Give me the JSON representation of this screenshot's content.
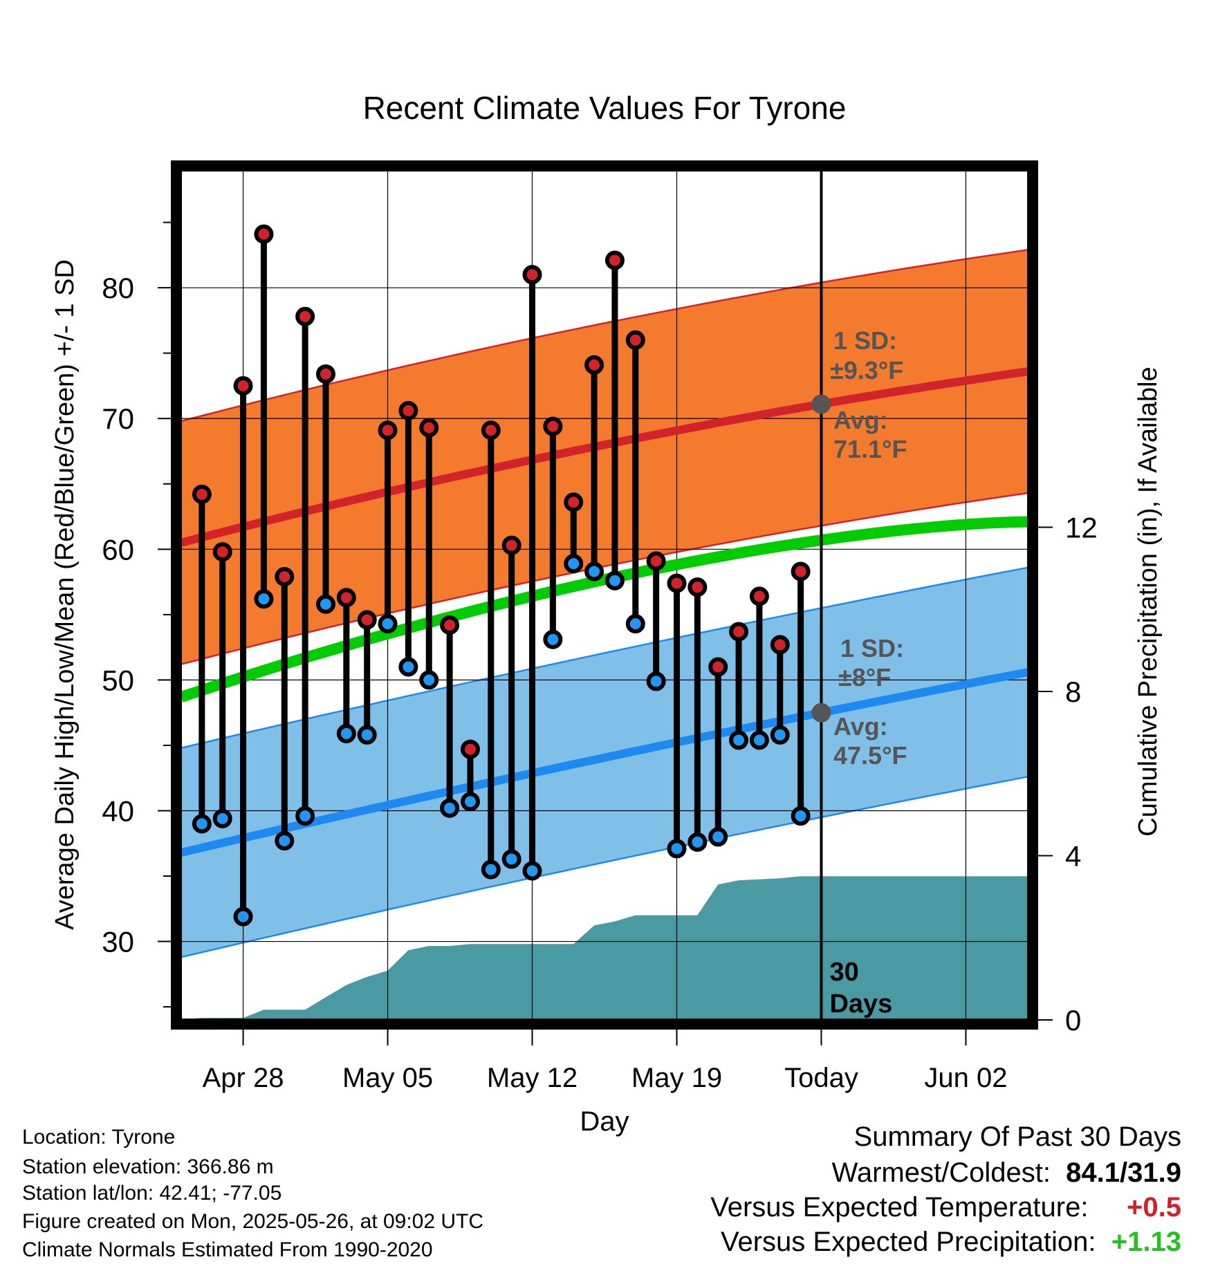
{
  "chart_data": {
    "type": "line",
    "title": "Recent Climate Values For Tyrone",
    "xlabel": "Day",
    "ylabel": "Average Daily High/Low/Mean (Red/Blue/Green) +/- 1 SD",
    "y2label": "Cumulative Precipitation (in), If Available",
    "ylim": [
      24,
      89
    ],
    "y2lim": [
      0,
      20.7
    ],
    "x_axis": {
      "start_date": "2025-04-25",
      "end_date": "2025-06-05",
      "tick_labels": [
        "Apr 28",
        "May 05",
        "May 12",
        "May 19",
        "Today",
        "Jun 02"
      ],
      "tick_dates": [
        "2025-04-28",
        "2025-05-05",
        "2025-05-12",
        "2025-05-19",
        "2025-05-26",
        "2025-06-02"
      ]
    },
    "y_ticks": [
      30,
      40,
      50,
      60,
      70,
      80
    ],
    "y2_ticks": [
      0,
      4,
      8,
      12
    ],
    "grid": true,
    "today_marker": {
      "date": "2025-05-26",
      "label": "30\nDays"
    },
    "normals": {
      "high_avg": {
        "start": 60.5,
        "today": 71.1,
        "end": 73.6
      },
      "high_sd": 9.3,
      "low_avg": {
        "start": 36.8,
        "today": 47.5,
        "end": 50.6
      },
      "low_sd": 8.0,
      "mean_avg": {
        "start": 48.7,
        "end": 62.1
      }
    },
    "daily": {
      "dates": [
        "2025-04-26",
        "2025-04-27",
        "2025-04-28",
        "2025-04-29",
        "2025-04-30",
        "2025-05-01",
        "2025-05-02",
        "2025-05-03",
        "2025-05-04",
        "2025-05-05",
        "2025-05-06",
        "2025-05-07",
        "2025-05-08",
        "2025-05-09",
        "2025-05-10",
        "2025-05-11",
        "2025-05-12",
        "2025-05-13",
        "2025-05-14",
        "2025-05-15",
        "2025-05-16",
        "2025-05-17",
        "2025-05-18",
        "2025-05-19",
        "2025-05-20",
        "2025-05-21",
        "2025-05-22",
        "2025-05-23",
        "2025-05-24",
        "2025-05-25"
      ],
      "highs": [
        64.2,
        59.8,
        72.5,
        84.1,
        57.9,
        77.8,
        73.4,
        56.3,
        54.6,
        69.1,
        70.6,
        69.3,
        54.2,
        44.7,
        69.1,
        60.3,
        81.0,
        69.4,
        63.6,
        74.1,
        82.1,
        76.0,
        59.1,
        57.4,
        57.1,
        51.0,
        53.7,
        56.4,
        52.7,
        58.3
      ],
      "lows": [
        39.0,
        39.4,
        31.9,
        56.2,
        37.7,
        39.6,
        55.8,
        45.9,
        45.8,
        54.3,
        51.0,
        50.0,
        40.2,
        40.7,
        35.5,
        36.3,
        35.4,
        53.1,
        58.9,
        58.3,
        57.6,
        54.3,
        49.9,
        37.1,
        37.6,
        38.0,
        45.4,
        45.4,
        45.8,
        39.6
      ]
    },
    "precip_cumulative": [
      {
        "date": "2025-04-25",
        "value": 0.0
      },
      {
        "date": "2025-04-26",
        "value": 0.05
      },
      {
        "date": "2025-04-28",
        "value": 0.05
      },
      {
        "date": "2025-04-29",
        "value": 0.25
      },
      {
        "date": "2025-05-01",
        "value": 0.25
      },
      {
        "date": "2025-05-02",
        "value": 0.55
      },
      {
        "date": "2025-05-03",
        "value": 0.85
      },
      {
        "date": "2025-05-04",
        "value": 1.05
      },
      {
        "date": "2025-05-05",
        "value": 1.2
      },
      {
        "date": "2025-05-06",
        "value": 1.7
      },
      {
        "date": "2025-05-07",
        "value": 1.8
      },
      {
        "date": "2025-05-08",
        "value": 1.8
      },
      {
        "date": "2025-05-09",
        "value": 1.85
      },
      {
        "date": "2025-05-13",
        "value": 1.85
      },
      {
        "date": "2025-05-14",
        "value": 1.85
      },
      {
        "date": "2025-05-15",
        "value": 2.3
      },
      {
        "date": "2025-05-16",
        "value": 2.4
      },
      {
        "date": "2025-05-17",
        "value": 2.55
      },
      {
        "date": "2025-05-19",
        "value": 2.55
      },
      {
        "date": "2025-05-20",
        "value": 2.55
      },
      {
        "date": "2025-05-21",
        "value": 3.3
      },
      {
        "date": "2025-05-22",
        "value": 3.4
      },
      {
        "date": "2025-05-24",
        "value": 3.45
      },
      {
        "date": "2025-05-25",
        "value": 3.5
      },
      {
        "date": "2025-06-05",
        "value": 3.5
      }
    ],
    "annotations": {
      "high_sd_label": "1 SD:",
      "high_sd_value": "±9.3°F",
      "high_avg_label": "Avg:",
      "high_avg_value": "71.1°F",
      "low_sd_label": "1 SD:",
      "low_sd_value": "±8°F",
      "low_avg_label": "Avg:",
      "low_avg_value": "47.5°F"
    },
    "colors": {
      "high_band": "#f47a2e",
      "high_line": "#d2232a",
      "low_band": "#80c0e8",
      "low_line": "#1e8af0",
      "mean_line": "#00cc00",
      "precip": "#4a9aa3",
      "high_point": "#d2232a",
      "low_point": "#2196f3",
      "annotation": "#555555"
    }
  },
  "footer": {
    "location": "Location: Tyrone",
    "elevation": "Station elevation: 366.86 m",
    "latlon": "Station lat/lon: 42.41; -77.05",
    "created": "Figure created on Mon, 2025-05-26, at 09:02 UTC",
    "normals": "Climate Normals Estimated From 1990-2020"
  },
  "summary": {
    "heading": "Summary Of Past 30 Days",
    "warm_cold_label": "Warmest/Coldest:",
    "warm_cold_value": "84.1/31.9",
    "temp_label": "Versus Expected Temperature:",
    "temp_value": "+0.5",
    "precip_label": "Versus Expected Precipitation:",
    "precip_value": "+1.13"
  }
}
